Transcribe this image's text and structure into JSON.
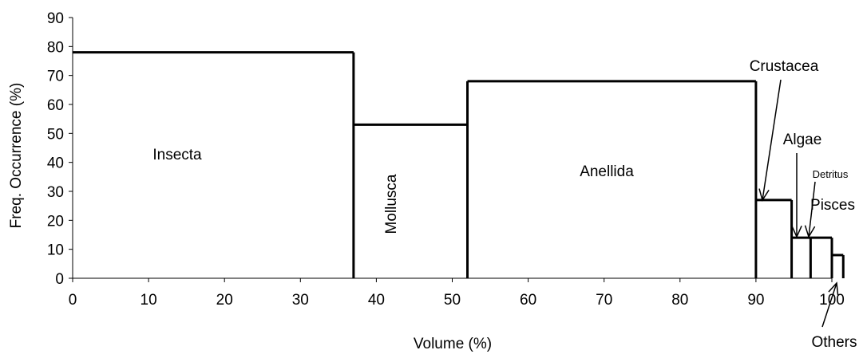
{
  "chart_data": {
    "type": "line",
    "title": "",
    "xlabel": "Volume (%)",
    "ylabel": "Freq. Occurrence (%)",
    "xlim": [
      0,
      100
    ],
    "ylim": [
      0,
      90
    ],
    "x_ticks": [
      "0",
      "10",
      "20",
      "30",
      "40",
      "50",
      "60",
      "70",
      "80",
      "90",
      "100"
    ],
    "y_ticks": [
      "0",
      "10",
      "20",
      "30",
      "40",
      "50",
      "60",
      "70",
      "80",
      "90"
    ],
    "grid": false,
    "legend": "none",
    "line_color": "#000000",
    "categories": [
      {
        "label": "Insecta",
        "x_start": 0,
        "x_end": 37,
        "y": 78
      },
      {
        "label": "Mollusca",
        "x_start": 37,
        "x_end": 52,
        "y": 53
      },
      {
        "label": "Anellida",
        "x_start": 52,
        "x_end": 90,
        "y": 68
      },
      {
        "label": "Crustacea",
        "x_start": 90,
        "x_end": 94.7,
        "y": 27
      },
      {
        "label": "Algae",
        "x_start": 94.7,
        "x_end": 97.2,
        "y": 14
      },
      {
        "label": "Detritus",
        "x_start": 97.2,
        "x_end": 97.2,
        "y": 14
      },
      {
        "label": "Pisces",
        "x_start": 97.2,
        "x_end": 100,
        "y": 14
      },
      {
        "label": "Others",
        "x_start": 100,
        "x_end": 101.5,
        "y": 8
      }
    ]
  }
}
